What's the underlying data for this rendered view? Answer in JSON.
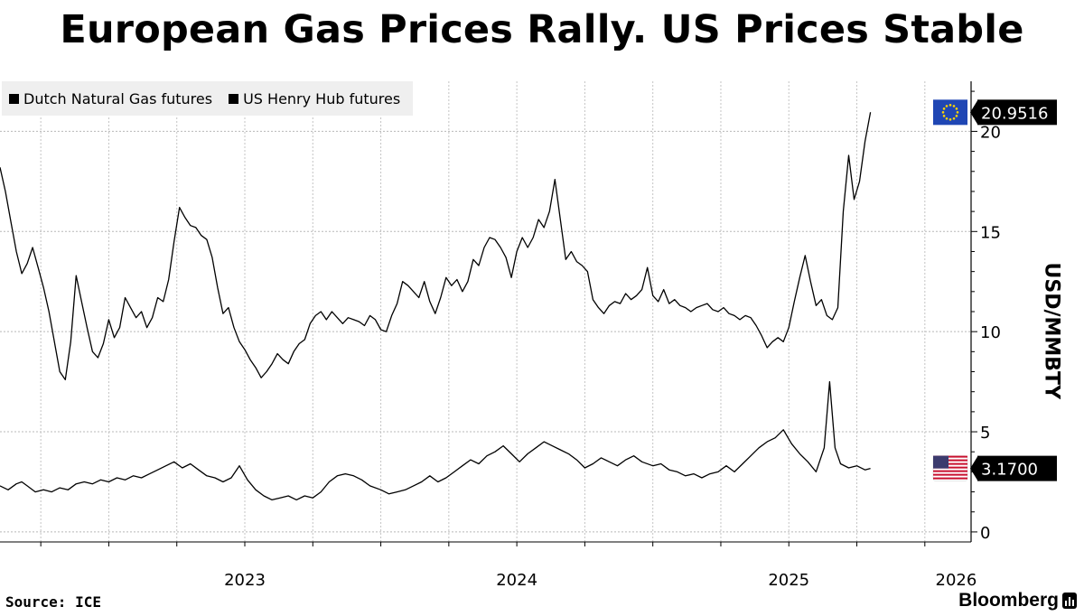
{
  "title": "European Gas Prices Rally. US Prices Stable",
  "source": "Source: ICE",
  "brand": "Bloomberg",
  "flags": {
    "eu": "eu-flag-icon",
    "us": "us-flag-icon"
  },
  "chart_data": {
    "type": "line",
    "title": "European Gas Prices Rally. US Prices Stable",
    "xlabel": "",
    "ylabel": "USD/MMBTY",
    "ylim": [
      -0.5,
      22.5
    ],
    "yticks": [
      0,
      5,
      10,
      15,
      20
    ],
    "ytick_labels": [
      "0",
      "5",
      "10",
      "15",
      "20"
    ],
    "xlim": [
      2022.6,
      2026.17
    ],
    "xticks": [
      2023,
      2024,
      2025,
      2026
    ],
    "xtick_labels": [
      "2023",
      "2024",
      "2025",
      "2026"
    ],
    "grid": true,
    "legend": "top-left",
    "legend_labels": [
      "Dutch Natural Gas futures",
      "US Henry Hub futures"
    ],
    "series": [
      {
        "name": "Dutch Natural Gas futures",
        "color": "#000000",
        "last_value_label": "20.9516",
        "points": [
          [
            2022.6,
            18.2
          ],
          [
            2022.62,
            17.0
          ],
          [
            2022.64,
            15.5
          ],
          [
            2022.66,
            14.0
          ],
          [
            2022.68,
            12.9
          ],
          [
            2022.7,
            13.4
          ],
          [
            2022.72,
            14.2
          ],
          [
            2022.74,
            13.2
          ],
          [
            2022.76,
            12.2
          ],
          [
            2022.78,
            11.0
          ],
          [
            2022.8,
            9.5
          ],
          [
            2022.82,
            8.0
          ],
          [
            2022.84,
            7.6
          ],
          [
            2022.86,
            9.5
          ],
          [
            2022.88,
            12.8
          ],
          [
            2022.9,
            11.5
          ],
          [
            2022.92,
            10.2
          ],
          [
            2022.94,
            9.0
          ],
          [
            2022.96,
            8.7
          ],
          [
            2022.98,
            9.4
          ],
          [
            2023.0,
            10.6
          ],
          [
            2023.02,
            9.7
          ],
          [
            2023.04,
            10.2
          ],
          [
            2023.06,
            11.7
          ],
          [
            2023.08,
            11.2
          ],
          [
            2023.1,
            10.7
          ],
          [
            2023.12,
            11.0
          ],
          [
            2023.14,
            10.2
          ],
          [
            2023.16,
            10.7
          ],
          [
            2023.18,
            11.7
          ],
          [
            2023.2,
            11.5
          ],
          [
            2023.22,
            12.6
          ],
          [
            2023.24,
            14.5
          ],
          [
            2023.26,
            16.2
          ],
          [
            2023.28,
            15.7
          ],
          [
            2023.3,
            15.3
          ],
          [
            2023.32,
            15.2
          ],
          [
            2023.34,
            14.8
          ],
          [
            2023.36,
            14.6
          ],
          [
            2023.38,
            13.7
          ],
          [
            2023.4,
            12.2
          ],
          [
            2023.42,
            10.9
          ],
          [
            2023.44,
            11.2
          ],
          [
            2023.46,
            10.2
          ],
          [
            2023.48,
            9.5
          ],
          [
            2023.5,
            9.1
          ],
          [
            2023.52,
            8.6
          ],
          [
            2023.54,
            8.2
          ],
          [
            2023.56,
            7.7
          ],
          [
            2023.58,
            8.0
          ],
          [
            2023.6,
            8.4
          ],
          [
            2023.62,
            8.9
          ],
          [
            2023.64,
            8.6
          ],
          [
            2023.66,
            8.4
          ],
          [
            2023.68,
            9.0
          ],
          [
            2023.7,
            9.4
          ],
          [
            2023.72,
            9.6
          ],
          [
            2023.74,
            10.4
          ],
          [
            2023.76,
            10.8
          ],
          [
            2023.78,
            11.0
          ],
          [
            2023.8,
            10.6
          ],
          [
            2023.82,
            11.0
          ],
          [
            2023.84,
            10.7
          ],
          [
            2023.86,
            10.4
          ],
          [
            2023.88,
            10.7
          ],
          [
            2023.9,
            10.6
          ],
          [
            2023.92,
            10.5
          ],
          [
            2023.94,
            10.3
          ],
          [
            2023.96,
            10.8
          ],
          [
            2023.98,
            10.6
          ],
          [
            2024.0,
            10.1
          ],
          [
            2024.02,
            10.0
          ],
          [
            2024.04,
            10.8
          ],
          [
            2024.06,
            11.4
          ],
          [
            2024.08,
            12.5
          ],
          [
            2024.1,
            12.3
          ],
          [
            2024.12,
            12.0
          ],
          [
            2024.14,
            11.7
          ],
          [
            2024.16,
            12.5
          ],
          [
            2024.18,
            11.5
          ],
          [
            2024.2,
            10.9
          ],
          [
            2024.22,
            11.7
          ],
          [
            2024.24,
            12.7
          ],
          [
            2024.26,
            12.3
          ],
          [
            2024.28,
            12.6
          ],
          [
            2024.3,
            12.0
          ],
          [
            2024.32,
            12.5
          ],
          [
            2024.34,
            13.6
          ],
          [
            2024.36,
            13.3
          ],
          [
            2024.38,
            14.2
          ],
          [
            2024.4,
            14.7
          ],
          [
            2024.42,
            14.6
          ],
          [
            2024.44,
            14.2
          ],
          [
            2024.46,
            13.7
          ],
          [
            2024.48,
            12.7
          ],
          [
            2024.5,
            14.0
          ],
          [
            2024.52,
            14.7
          ],
          [
            2024.54,
            14.2
          ],
          [
            2024.56,
            14.7
          ],
          [
            2024.58,
            15.6
          ],
          [
            2024.6,
            15.2
          ],
          [
            2024.62,
            16.0
          ],
          [
            2024.64,
            17.6
          ],
          [
            2024.66,
            15.6
          ],
          [
            2024.68,
            13.6
          ],
          [
            2024.7,
            14.0
          ],
          [
            2024.72,
            13.5
          ],
          [
            2024.74,
            13.3
          ],
          [
            2024.76,
            13.0
          ],
          [
            2024.78,
            11.6
          ],
          [
            2024.8,
            11.2
          ],
          [
            2024.82,
            10.9
          ],
          [
            2024.84,
            11.3
          ],
          [
            2024.86,
            11.5
          ],
          [
            2024.88,
            11.4
          ],
          [
            2024.9,
            11.9
          ],
          [
            2024.92,
            11.6
          ],
          [
            2024.94,
            11.8
          ],
          [
            2024.96,
            12.1
          ],
          [
            2024.98,
            13.2
          ],
          [
            2025.0,
            11.8
          ],
          [
            2025.02,
            11.5
          ],
          [
            2025.04,
            12.1
          ],
          [
            2025.06,
            11.4
          ],
          [
            2025.08,
            11.6
          ],
          [
            2025.1,
            11.3
          ],
          [
            2025.12,
            11.2
          ],
          [
            2025.14,
            11.0
          ],
          [
            2025.16,
            11.2
          ],
          [
            2025.18,
            11.3
          ],
          [
            2025.2,
            11.4
          ],
          [
            2025.22,
            11.1
          ],
          [
            2025.24,
            11.0
          ],
          [
            2025.26,
            11.2
          ],
          [
            2025.28,
            10.9
          ],
          [
            2025.3,
            10.8
          ],
          [
            2025.32,
            10.6
          ],
          [
            2025.34,
            10.8
          ],
          [
            2025.36,
            10.7
          ],
          [
            2025.38,
            10.3
          ],
          [
            2025.4,
            9.8
          ],
          [
            2025.42,
            9.2
          ],
          [
            2025.44,
            9.5
          ],
          [
            2025.46,
            9.7
          ],
          [
            2025.48,
            9.5
          ],
          [
            2025.5,
            10.2
          ],
          [
            2025.52,
            11.5
          ],
          [
            2025.54,
            12.7
          ],
          [
            2025.56,
            13.8
          ],
          [
            2025.58,
            12.5
          ],
          [
            2025.6,
            11.3
          ],
          [
            2025.62,
            11.6
          ],
          [
            2025.64,
            10.8
          ],
          [
            2025.66,
            10.6
          ],
          [
            2025.68,
            11.2
          ],
          [
            2025.7,
            16.0
          ],
          [
            2025.72,
            18.8
          ],
          [
            2025.74,
            16.6
          ],
          [
            2025.76,
            17.5
          ],
          [
            2025.78,
            19.5
          ],
          [
            2025.8,
            20.9516
          ]
        ]
      },
      {
        "name": "US Henry Hub futures",
        "color": "#000000",
        "last_value_label": "3.1700",
        "points": [
          [
            2022.6,
            2.3
          ],
          [
            2022.63,
            2.1
          ],
          [
            2022.66,
            2.4
          ],
          [
            2022.68,
            2.5
          ],
          [
            2022.7,
            2.3
          ],
          [
            2022.73,
            2.0
          ],
          [
            2022.76,
            2.1
          ],
          [
            2022.79,
            2.0
          ],
          [
            2022.82,
            2.2
          ],
          [
            2022.85,
            2.1
          ],
          [
            2022.88,
            2.4
          ],
          [
            2022.91,
            2.5
          ],
          [
            2022.94,
            2.4
          ],
          [
            2022.97,
            2.6
          ],
          [
            2023.0,
            2.5
          ],
          [
            2023.03,
            2.7
          ],
          [
            2023.06,
            2.6
          ],
          [
            2023.09,
            2.8
          ],
          [
            2023.12,
            2.7
          ],
          [
            2023.15,
            2.9
          ],
          [
            2023.18,
            3.1
          ],
          [
            2023.21,
            3.3
          ],
          [
            2023.24,
            3.5
          ],
          [
            2023.27,
            3.2
          ],
          [
            2023.3,
            3.4
          ],
          [
            2023.33,
            3.1
          ],
          [
            2023.36,
            2.8
          ],
          [
            2023.39,
            2.7
          ],
          [
            2023.42,
            2.5
          ],
          [
            2023.45,
            2.7
          ],
          [
            2023.48,
            3.3
          ],
          [
            2023.51,
            2.6
          ],
          [
            2023.54,
            2.1
          ],
          [
            2023.57,
            1.8
          ],
          [
            2023.6,
            1.6
          ],
          [
            2023.63,
            1.7
          ],
          [
            2023.66,
            1.8
          ],
          [
            2023.69,
            1.6
          ],
          [
            2023.72,
            1.8
          ],
          [
            2023.75,
            1.7
          ],
          [
            2023.78,
            2.0
          ],
          [
            2023.81,
            2.5
          ],
          [
            2023.84,
            2.8
          ],
          [
            2023.87,
            2.9
          ],
          [
            2023.9,
            2.8
          ],
          [
            2023.93,
            2.6
          ],
          [
            2023.96,
            2.3
          ],
          [
            2024.0,
            2.1
          ],
          [
            2024.03,
            1.9
          ],
          [
            2024.06,
            2.0
          ],
          [
            2024.09,
            2.1
          ],
          [
            2024.12,
            2.3
          ],
          [
            2024.15,
            2.5
          ],
          [
            2024.18,
            2.8
          ],
          [
            2024.21,
            2.5
          ],
          [
            2024.24,
            2.7
          ],
          [
            2024.27,
            3.0
          ],
          [
            2024.3,
            3.3
          ],
          [
            2024.33,
            3.6
          ],
          [
            2024.36,
            3.4
          ],
          [
            2024.39,
            3.8
          ],
          [
            2024.42,
            4.0
          ],
          [
            2024.45,
            4.3
          ],
          [
            2024.48,
            3.9
          ],
          [
            2024.51,
            3.5
          ],
          [
            2024.54,
            3.9
          ],
          [
            2024.57,
            4.2
          ],
          [
            2024.6,
            4.5
          ],
          [
            2024.63,
            4.3
          ],
          [
            2024.66,
            4.1
          ],
          [
            2024.69,
            3.9
          ],
          [
            2024.72,
            3.6
          ],
          [
            2024.75,
            3.2
          ],
          [
            2024.78,
            3.4
          ],
          [
            2024.81,
            3.7
          ],
          [
            2024.84,
            3.5
          ],
          [
            2024.87,
            3.3
          ],
          [
            2024.9,
            3.6
          ],
          [
            2024.93,
            3.8
          ],
          [
            2024.96,
            3.5
          ],
          [
            2025.0,
            3.3
          ],
          [
            2025.03,
            3.4
          ],
          [
            2025.06,
            3.1
          ],
          [
            2025.09,
            3.0
          ],
          [
            2025.12,
            2.8
          ],
          [
            2025.15,
            2.9
          ],
          [
            2025.18,
            2.7
          ],
          [
            2025.21,
            2.9
          ],
          [
            2025.24,
            3.0
          ],
          [
            2025.27,
            3.3
          ],
          [
            2025.3,
            3.0
          ],
          [
            2025.33,
            3.4
          ],
          [
            2025.36,
            3.8
          ],
          [
            2025.39,
            4.2
          ],
          [
            2025.42,
            4.5
          ],
          [
            2025.45,
            4.7
          ],
          [
            2025.48,
            5.1
          ],
          [
            2025.51,
            4.4
          ],
          [
            2025.54,
            3.9
          ],
          [
            2025.57,
            3.5
          ],
          [
            2025.6,
            3.0
          ],
          [
            2025.63,
            4.2
          ],
          [
            2025.65,
            7.5
          ],
          [
            2025.67,
            4.2
          ],
          [
            2025.69,
            3.4
          ],
          [
            2025.72,
            3.2
          ],
          [
            2025.75,
            3.3
          ],
          [
            2025.78,
            3.1
          ],
          [
            2025.8,
            3.17
          ]
        ]
      }
    ]
  }
}
